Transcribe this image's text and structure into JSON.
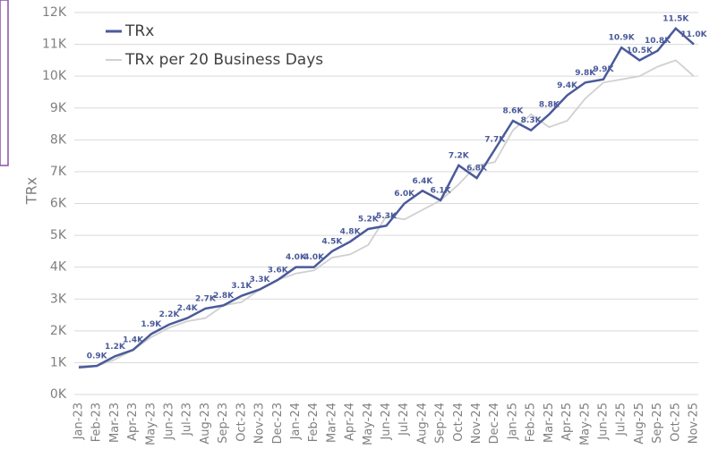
{
  "chart_data": {
    "type": "line",
    "y_label": "TRx",
    "categories": [
      "Jan-23",
      "Feb-23",
      "Mar-23",
      "Apr-23",
      "May-23",
      "Jun-23",
      "Jul-23",
      "Aug-23",
      "Sep-23",
      "Oct-23",
      "Nov-23",
      "Dec-23",
      "Jan-24",
      "Feb-24",
      "Mar-24",
      "Apr-24",
      "May-24",
      "Jun-24",
      "Jul-24",
      "Aug-24",
      "Sep-24",
      "Oct-24",
      "Nov-24",
      "Dec-24",
      "Jan-25",
      "Feb-25",
      "Mar-25",
      "Apr-25",
      "May-25",
      "Jun-25",
      "Jul-25",
      "Aug-25",
      "Sep-25",
      "Oct-25",
      "Nov-25"
    ],
    "series": [
      {
        "name": "TRx",
        "color": "#4a5a9a",
        "values": [
          850,
          900,
          1200,
          1400,
          1900,
          2200,
          2400,
          2700,
          2800,
          3100,
          3300,
          3600,
          4000,
          4000,
          4500,
          4800,
          5200,
          5300,
          6000,
          6400,
          6100,
          7200,
          6800,
          7700,
          8600,
          8300,
          8800,
          9400,
          9800,
          9900,
          10900,
          10500,
          10800,
          11500,
          11000
        ],
        "value_labels": [
          null,
          "0.9K",
          "1.2K",
          "1.4K",
          "1.9K",
          "2.2K",
          "2.4K",
          "2.7K",
          "2.8K",
          "3.1K",
          "3.3K",
          "3.6K",
          "4.0K",
          "4.0K",
          "4.5K",
          "4.8K",
          "5.2K",
          "5.3K",
          "6.0K",
          "6.4K",
          "6.1K",
          "7.2K",
          "6.8K",
          "7.7K",
          "8.6K",
          "8.3K",
          "8.8K",
          "9.4K",
          "9.8K",
          "9.9K",
          "10.9K",
          "10.5K",
          "10.8K",
          "11.5K",
          "11.0K"
        ]
      },
      {
        "name": "TRx per 20 Business Days",
        "color": "#d0d0d0",
        "values": [
          900,
          900,
          1100,
          1400,
          1800,
          2100,
          2300,
          2400,
          2800,
          2900,
          3300,
          3600,
          3800,
          3900,
          4300,
          4400,
          4700,
          5600,
          5500,
          5800,
          6100,
          6600,
          7200,
          7300,
          8300,
          8800,
          8400,
          8600,
          9300,
          9800,
          9900,
          10000,
          10300,
          10500,
          10000
        ]
      }
    ],
    "ylim": [
      0,
      12000
    ],
    "yticks": [
      {
        "value": 0,
        "label": "0K"
      },
      {
        "value": 1000,
        "label": "1K"
      },
      {
        "value": 2000,
        "label": "2K"
      },
      {
        "value": 3000,
        "label": "3K"
      },
      {
        "value": 4000,
        "label": "4K"
      },
      {
        "value": 5000,
        "label": "5K"
      },
      {
        "value": 6000,
        "label": "6K"
      },
      {
        "value": 7000,
        "label": "7K"
      },
      {
        "value": 8000,
        "label": "8K"
      },
      {
        "value": 9000,
        "label": "9K"
      },
      {
        "value": 10000,
        "label": "10K"
      },
      {
        "value": 11000,
        "label": "11K"
      },
      {
        "value": 12000,
        "label": "12K"
      }
    ],
    "grid": true,
    "legend": "top-left"
  }
}
